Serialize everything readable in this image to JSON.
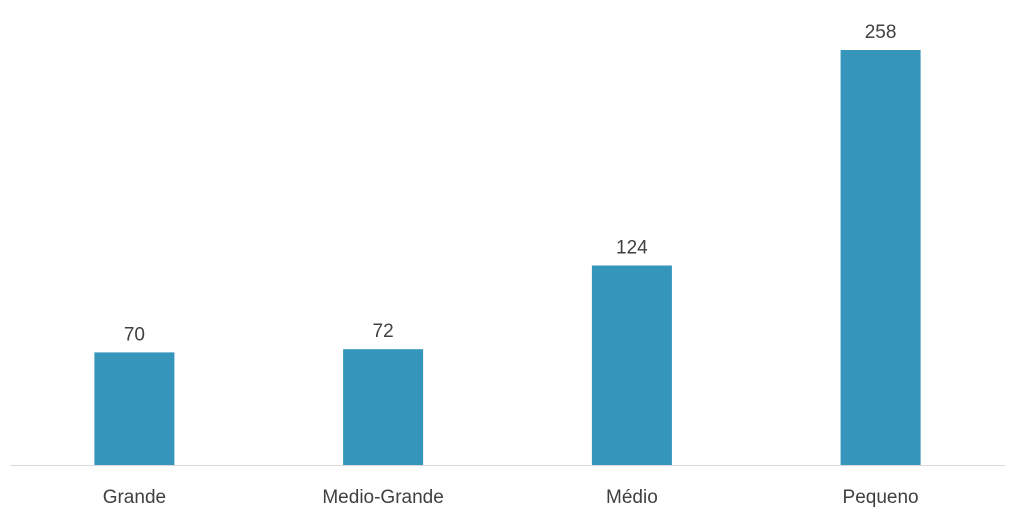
{
  "chart_data": {
    "type": "bar",
    "categories": [
      "Grande",
      "Medio-Grande",
      "Médio",
      "Pequeno"
    ],
    "values": [
      70,
      72,
      124,
      258
    ],
    "data_labels": [
      "70",
      "72",
      "124",
      "258"
    ],
    "title": "",
    "xlabel": "",
    "ylabel": "",
    "ylim": [
      0,
      258
    ],
    "y_axis_visible": false,
    "grid": false,
    "legend": "none",
    "bar_color": "#3595bb",
    "axis_color": "#d9d9d9",
    "text_color": "#404040"
  }
}
